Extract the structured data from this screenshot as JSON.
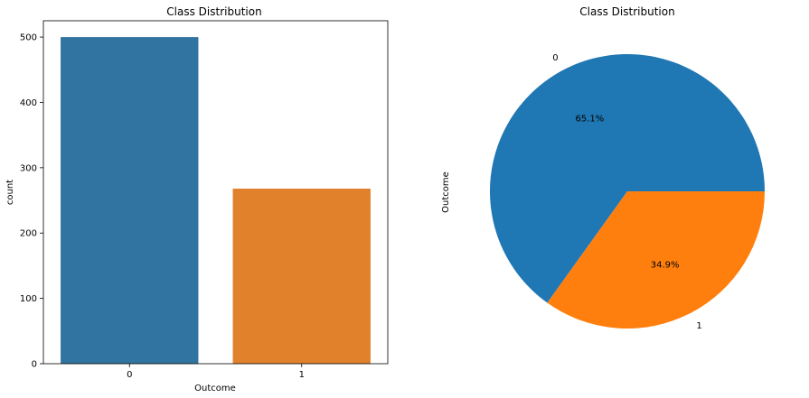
{
  "chart_data": [
    {
      "type": "bar",
      "title": "Class Distribution",
      "xlabel": "Outcome",
      "ylabel": "count",
      "categories": [
        "0",
        "1"
      ],
      "values": [
        500,
        268
      ],
      "colors": [
        "#3274a1",
        "#e1812c"
      ],
      "ylim": [
        0,
        525
      ],
      "yticks": [
        0,
        100,
        200,
        300,
        400,
        500
      ],
      "grid": false
    },
    {
      "type": "pie",
      "title": "Class Distribution",
      "ylabel": "Outcome",
      "labels": [
        "0",
        "1"
      ],
      "values": [
        65.1,
        34.9
      ],
      "pct_labels": [
        "65.1%",
        "34.9%"
      ],
      "colors": [
        "#1f77b4",
        "#ff7f0e"
      ]
    }
  ]
}
